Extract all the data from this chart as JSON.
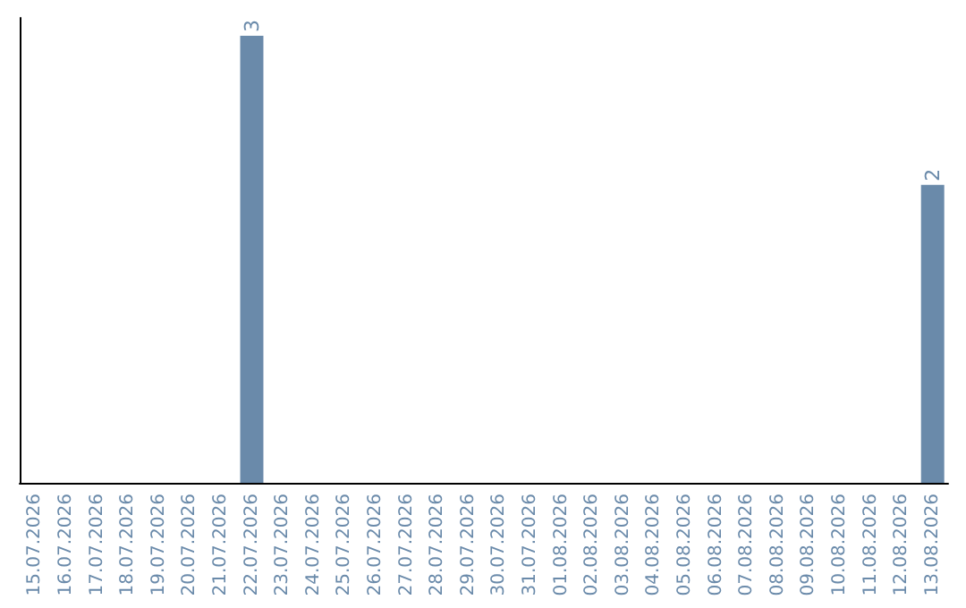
{
  "chart_data": {
    "type": "bar",
    "categories": [
      "15.07.2026",
      "16.07.2026",
      "17.07.2026",
      "18.07.2026",
      "19.07.2026",
      "20.07.2026",
      "21.07.2026",
      "22.07.2026",
      "23.07.2026",
      "24.07.2026",
      "25.07.2026",
      "26.07.2026",
      "27.07.2026",
      "28.07.2026",
      "29.07.2026",
      "30.07.2026",
      "31.07.2026",
      "01.08.2026",
      "02.08.2026",
      "03.08.2026",
      "04.08.2026",
      "05.08.2026",
      "06.08.2026",
      "07.08.2026",
      "08.08.2026",
      "09.08.2026",
      "10.08.2026",
      "11.08.2026",
      "12.08.2026",
      "13.08.2026"
    ],
    "values": [
      0,
      0,
      0,
      0,
      0,
      0,
      0,
      3,
      0,
      0,
      0,
      0,
      0,
      0,
      0,
      0,
      0,
      0,
      0,
      0,
      0,
      0,
      0,
      0,
      0,
      0,
      0,
      0,
      0,
      2
    ],
    "value_labels": [
      null,
      null,
      null,
      null,
      null,
      null,
      null,
      "3",
      null,
      null,
      null,
      null,
      null,
      null,
      null,
      null,
      null,
      null,
      null,
      null,
      null,
      null,
      null,
      null,
      null,
      null,
      null,
      null,
      null,
      "2"
    ],
    "color": "#6a8aaa",
    "grid": false
  }
}
